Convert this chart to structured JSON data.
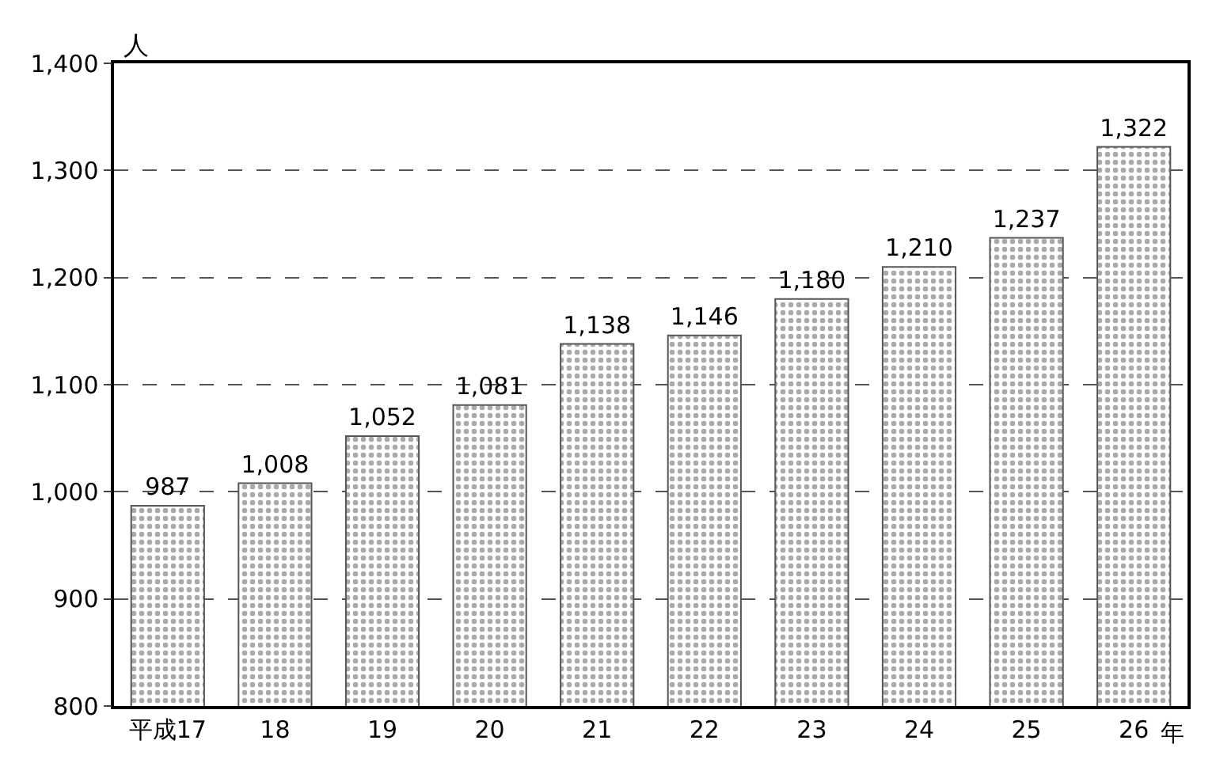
{
  "chart_data": {
    "type": "bar",
    "ylabel": "人",
    "xlabel": "年",
    "categories": [
      "平成17",
      "18",
      "19",
      "20",
      "21",
      "22",
      "23",
      "24",
      "25",
      "26"
    ],
    "values": [
      987,
      1008,
      1052,
      1081,
      1138,
      1146,
      1180,
      1210,
      1237,
      1322
    ],
    "value_labels": [
      "987",
      "1,008",
      "1,052",
      "1,081",
      "1,138",
      "1,146",
      "1,180",
      "1,210",
      "1,237",
      "1,322"
    ],
    "color": "#555555",
    "ylim": [
      800,
      1400
    ],
    "yticks": [
      800,
      900,
      {
        "value": 1000,
        "label": "1,000"
      },
      {
        "value": 1100,
        "label": "1,100"
      },
      {
        "value": 1200,
        "label": "1,200"
      },
      {
        "value": 1300,
        "label": "1,300"
      },
      {
        "value": 1400,
        "label": "1,400"
      }
    ],
    "grid": "y",
    "legend": false
  }
}
